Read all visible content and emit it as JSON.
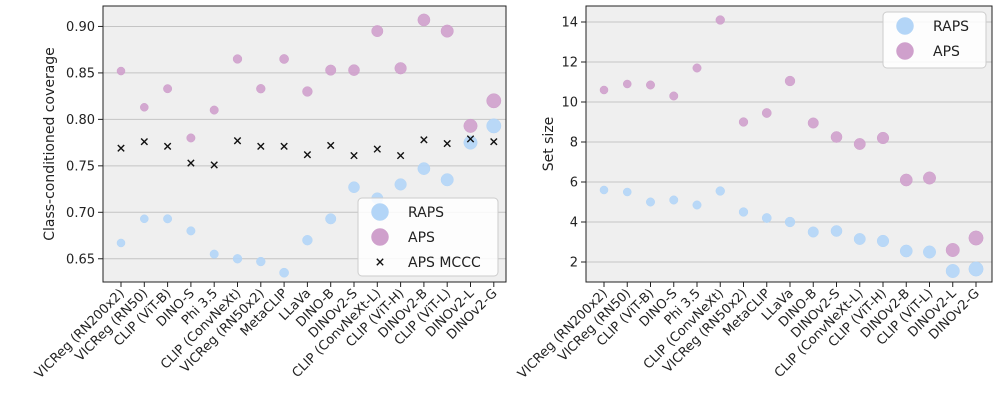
{
  "chart_data": [
    {
      "type": "scatter",
      "xlabel": "",
      "ylabel": "Class-conditioned coverage",
      "ylim": [
        0.625,
        0.922
      ],
      "yticks": [
        0.65,
        0.7,
        0.75,
        0.8,
        0.85,
        0.9
      ],
      "ytick_labels": [
        "0.65",
        "0.70",
        "0.75",
        "0.80",
        "0.85",
        "0.90"
      ],
      "grid": true,
      "legend_position": "bottom-right",
      "categories": [
        "VICReg (RN200x2)",
        "VICReg (RN50)",
        "CLIP (ViT-B)",
        "DINO-S",
        "Phi 3.5",
        "CLIP (ConvNeXt)",
        "VICReg (RN50x2)",
        "MetaCLIP",
        "LLaVa",
        "DINO-B",
        "DINOv2-S",
        "CLIP (ConvNeXt-L)",
        "CLIP (ViT-H)",
        "DINOv2-B",
        "CLIP (ViT-L)",
        "DINOv2-L",
        "DINOv2-G"
      ],
      "marker_sizes": [
        1,
        1,
        1.1,
        1.1,
        1.1,
        1.2,
        1.2,
        1.3,
        1.5,
        1.7,
        1.9,
        2.0,
        2.1,
        2.3,
        2.4,
        2.8,
        3.2
      ],
      "series": [
        {
          "name": "RAPS",
          "color": "#b3d5f7",
          "values": [
            0.667,
            0.693,
            0.693,
            0.68,
            0.655,
            0.65,
            0.647,
            0.635,
            0.67,
            0.693,
            0.727,
            0.715,
            0.73,
            0.747,
            0.735,
            0.775,
            0.793
          ]
        },
        {
          "name": "APS",
          "color": "#cfa0cc",
          "values": [
            0.852,
            0.813,
            0.833,
            0.78,
            0.81,
            0.865,
            0.833,
            0.865,
            0.83,
            0.853,
            0.853,
            0.895,
            0.855,
            0.907,
            0.895,
            0.793,
            0.82
          ]
        },
        {
          "name": "APS MCCC",
          "color": "#111111",
          "values": [
            0.769,
            0.776,
            0.771,
            0.753,
            0.751,
            0.777,
            0.771,
            0.771,
            0.762,
            0.772,
            0.761,
            0.768,
            0.761,
            0.778,
            0.774,
            0.779,
            0.776
          ]
        }
      ]
    },
    {
      "type": "scatter",
      "xlabel": "",
      "ylabel": "Set size",
      "ylim": [
        1.0,
        14.8
      ],
      "yticks": [
        2,
        4,
        6,
        8,
        10,
        12,
        14
      ],
      "ytick_labels": [
        "2",
        "4",
        "6",
        "8",
        "10",
        "12",
        "14"
      ],
      "grid": true,
      "legend_position": "top-right",
      "categories": [
        "VICReg (RN200x2)",
        "VICReg (RN50)",
        "CLIP (ViT-B)",
        "DINO-S",
        "Phi 3.5",
        "CLIP (ConvNeXt)",
        "VICReg (RN50x2)",
        "MetaCLIP",
        "LLaVa",
        "DINO-B",
        "DINOv2-S",
        "CLIP (ConvNeXt-L)",
        "CLIP (ViT-H)",
        "DINOv2-B",
        "CLIP (ViT-L)",
        "DINOv2-L",
        "DINOv2-G"
      ],
      "marker_sizes": [
        1,
        1,
        1.1,
        1.1,
        1.1,
        1.2,
        1.2,
        1.3,
        1.5,
        1.7,
        1.9,
        2.0,
        2.1,
        2.3,
        2.4,
        2.8,
        3.2
      ],
      "series": [
        {
          "name": "RAPS",
          "color": "#b3d5f7",
          "values": [
            5.6,
            5.5,
            5.0,
            5.1,
            4.85,
            5.55,
            4.5,
            4.2,
            4.0,
            3.5,
            3.55,
            3.15,
            3.05,
            2.55,
            2.5,
            1.55,
            1.65
          ]
        },
        {
          "name": "APS",
          "color": "#cfa0cc",
          "values": [
            10.6,
            10.9,
            10.85,
            10.3,
            11.7,
            14.1,
            9.0,
            9.45,
            11.05,
            8.95,
            8.25,
            7.9,
            8.2,
            6.1,
            6.2,
            2.6,
            3.2
          ]
        }
      ]
    }
  ]
}
